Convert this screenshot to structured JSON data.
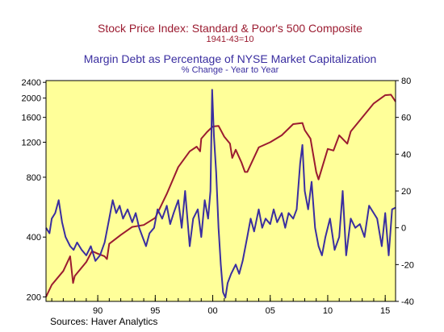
{
  "chart_data": {
    "type": "line",
    "title": "Stock Price Index: Standard & Poor's 500 Composite",
    "subtitle": "1941-43=10",
    "title2": "Margin Debt as Percentage of NYSE Market Capitalization",
    "subtitle2": "% Change - Year to Year",
    "source": "Sources:  Haver Analytics",
    "x_range": [
      1985.5,
      2015.9
    ],
    "x_ticks": [
      {
        "v": 1990,
        "label": "90"
      },
      {
        "v": 1995,
        "label": "95"
      },
      {
        "v": 2000,
        "label": "00"
      },
      {
        "v": 2005,
        "label": "05"
      },
      {
        "v": 2010,
        "label": "10"
      },
      {
        "v": 2015,
        "label": "15"
      }
    ],
    "left_axis": {
      "scale": "log",
      "range": [
        190,
        2450
      ],
      "ticks": [
        200,
        400,
        800,
        1200,
        1600,
        2000,
        2400
      ]
    },
    "right_axis": {
      "scale": "linear",
      "range": [
        -40,
        80
      ],
      "ticks": [
        -40,
        -20,
        0,
        20,
        40,
        60,
        80
      ]
    },
    "colors": {
      "sp500": "#9b1b30",
      "margin": "#3a2ea0",
      "plot_bg": "#ffff99"
    },
    "series": [
      {
        "key": "sp500",
        "axis": "left",
        "x": [
          1985.5,
          1986,
          1987,
          1987.6,
          1987.85,
          1988,
          1989,
          1989.5,
          1990,
          1990.6,
          1990.8,
          1991,
          1992,
          1993,
          1994,
          1995,
          1996,
          1997,
          1998,
          1998.6,
          1998.9,
          1999,
          1999.5,
          2000,
          2000.5,
          2001,
          2001.5,
          2001.7,
          2002,
          2002.5,
          2002.8,
          2003,
          2004,
          2005,
          2006,
          2007,
          2007.8,
          2008,
          2008.5,
          2009,
          2009.2,
          2010,
          2010.5,
          2011,
          2011.7,
          2012,
          2013,
          2014,
          2015,
          2015.5,
          2015.9
        ],
        "values": [
          200,
          230,
          270,
          320,
          235,
          255,
          300,
          340,
          330,
          320,
          310,
          370,
          410,
          450,
          460,
          500,
          660,
          900,
          1080,
          1140,
          1080,
          1250,
          1350,
          1440,
          1450,
          1280,
          1180,
          1000,
          1100,
          950,
          850,
          850,
          1130,
          1200,
          1300,
          1480,
          1500,
          1380,
          1250,
          850,
          780,
          1110,
          1090,
          1300,
          1180,
          1360,
          1600,
          1880,
          2070,
          2080,
          1920
        ]
      },
      {
        "key": "margin",
        "axis": "right",
        "x": [
          1985.5,
          1985.8,
          1986,
          1986.3,
          1986.6,
          1986.9,
          1987.2,
          1987.6,
          1987.9,
          1988.2,
          1988.6,
          1989,
          1989.4,
          1989.8,
          1990.2,
          1990.6,
          1991,
          1991.3,
          1991.6,
          1991.9,
          1992.2,
          1992.6,
          1993,
          1993.3,
          1993.6,
          1993.9,
          1994.2,
          1994.5,
          1994.9,
          1995.2,
          1995.6,
          1996,
          1996.3,
          1996.6,
          1997,
          1997.3,
          1997.6,
          1998,
          1998.3,
          1998.7,
          1999,
          1999.3,
          1999.6,
          1999.8,
          1999.95,
          2000.1,
          2000.3,
          2000.5,
          2000.7,
          2000.9,
          2001.1,
          2001.3,
          2001.6,
          2002,
          2002.3,
          2002.6,
          2003,
          2003.3,
          2003.6,
          2004,
          2004.3,
          2004.6,
          2005,
          2005.3,
          2005.6,
          2006,
          2006.3,
          2006.6,
          2007,
          2007.3,
          2007.6,
          2007.8,
          2008,
          2008.3,
          2008.6,
          2008.9,
          2009.2,
          2009.5,
          2009.8,
          2010.2,
          2010.6,
          2011,
          2011.3,
          2011.6,
          2012,
          2012.4,
          2012.8,
          2013.2,
          2013.6,
          2014,
          2014.3,
          2014.7,
          2015,
          2015.3,
          2015.6,
          2015.9
        ],
        "values": [
          0,
          -3,
          5,
          8,
          15,
          3,
          -5,
          -10,
          -12,
          -8,
          -12,
          -15,
          -10,
          -18,
          -15,
          -8,
          5,
          15,
          8,
          12,
          5,
          10,
          3,
          8,
          0,
          -5,
          -10,
          -3,
          0,
          10,
          5,
          12,
          2,
          8,
          15,
          0,
          20,
          -10,
          5,
          10,
          -5,
          15,
          5,
          20,
          75,
          50,
          30,
          0,
          -20,
          -35,
          -38,
          -30,
          -25,
          -20,
          -25,
          -18,
          -5,
          5,
          -2,
          10,
          0,
          5,
          2,
          10,
          3,
          8,
          0,
          8,
          5,
          10,
          35,
          45,
          20,
          10,
          25,
          0,
          -10,
          -15,
          -5,
          5,
          -12,
          -5,
          20,
          -15,
          5,
          0,
          2,
          -5,
          12,
          8,
          5,
          -10,
          8,
          -15,
          10,
          11
        ]
      }
    ]
  }
}
